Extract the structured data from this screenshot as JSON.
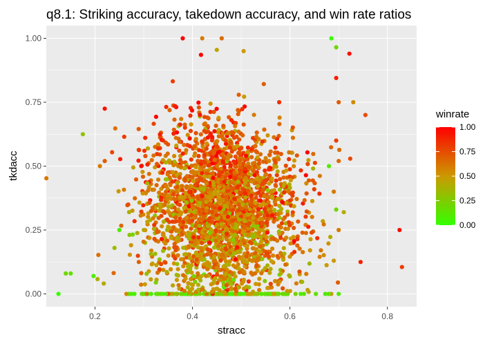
{
  "chart_data": {
    "type": "scatter",
    "title": "q8.1: Striking accuracy, takedown accuracy, and win rate ratios",
    "xlabel": "stracc",
    "ylabel": "tkdacc",
    "xlim": [
      0.1,
      0.86
    ],
    "ylim": [
      -0.05,
      1.05
    ],
    "x_ticks": [
      0.2,
      0.4,
      0.6,
      0.8
    ],
    "x_tick_labels": [
      "0.2",
      "0.4",
      "0.6",
      "0.8"
    ],
    "y_ticks": [
      0,
      0.25,
      0.5,
      0.75,
      1
    ],
    "y_tick_labels": [
      "0.00",
      "0.25",
      "0.50",
      "0.75",
      "1.00"
    ],
    "grid": true,
    "legend": {
      "title": "winrate",
      "placement": "right",
      "type": "colorbar",
      "range": [
        0,
        1
      ],
      "ticks": [
        0,
        0.25,
        0.5,
        0.75,
        1
      ],
      "tick_labels": [
        "0.00",
        "0.25",
        "0.50",
        "0.75",
        "1.00"
      ],
      "low_color": "#33ff00",
      "mid_color": "#cc9900",
      "high_color": "#ff0000"
    },
    "colors": {
      "panel_background": "#ebebeb",
      "gridline": "#ffffff"
    },
    "points_outliers": [
      {
        "x": 0.125,
        "y": 0.0,
        "winrate": 0.0
      },
      {
        "x": 0.14,
        "y": 0.08,
        "winrate": 0.2
      },
      {
        "x": 0.15,
        "y": 0.08,
        "winrate": 0.15
      },
      {
        "x": 0.175,
        "y": 0.625,
        "winrate": 0.3
      },
      {
        "x": 0.197,
        "y": 0.07,
        "winrate": 0.1
      },
      {
        "x": 0.21,
        "y": 0.5,
        "winrate": 0.6
      },
      {
        "x": 0.22,
        "y": 0.52,
        "winrate": 0.7
      },
      {
        "x": 0.22,
        "y": 0.725,
        "winrate": 0.95
      },
      {
        "x": 0.26,
        "y": 0.615,
        "winrate": 0.8
      },
      {
        "x": 0.38,
        "y": 1.0,
        "winrate": 1.0
      },
      {
        "x": 0.42,
        "y": 1.0,
        "winrate": 0.6
      },
      {
        "x": 0.46,
        "y": 1.0,
        "winrate": 0.65
      },
      {
        "x": 0.45,
        "y": 0.955,
        "winrate": 0.45
      },
      {
        "x": 0.505,
        "y": 0.95,
        "winrate": 0.5
      },
      {
        "x": 0.685,
        "y": 1.0,
        "winrate": 0.0
      },
      {
        "x": 0.695,
        "y": 0.965,
        "winrate": 0.2
      },
      {
        "x": 0.722,
        "y": 0.94,
        "winrate": 0.95
      },
      {
        "x": 0.695,
        "y": 0.845,
        "winrate": 0.9
      },
      {
        "x": 0.73,
        "y": 0.75,
        "winrate": 0.55
      },
      {
        "x": 0.755,
        "y": 0.7,
        "winrate": 0.75
      },
      {
        "x": 0.7,
        "y": 0.75,
        "winrate": 0.7
      },
      {
        "x": 0.695,
        "y": 0.6,
        "winrate": 0.8
      },
      {
        "x": 0.7,
        "y": 0.52,
        "winrate": 0.65
      },
      {
        "x": 0.68,
        "y": 0.5,
        "winrate": 0.1
      },
      {
        "x": 0.69,
        "y": 0.4,
        "winrate": 0.6
      },
      {
        "x": 0.695,
        "y": 0.33,
        "winrate": 0.2
      },
      {
        "x": 0.7,
        "y": 0.25,
        "winrate": 0.6
      },
      {
        "x": 0.69,
        "y": 0.13,
        "winrate": 0.5
      },
      {
        "x": 0.7,
        "y": 0.0,
        "winrate": 0.1
      },
      {
        "x": 0.745,
        "y": 0.125,
        "winrate": 0.9
      },
      {
        "x": 0.825,
        "y": 0.25,
        "winrate": 0.95
      },
      {
        "x": 0.83,
        "y": 0.105,
        "winrate": 0.8
      },
      {
        "x": 0.295,
        "y": 0.5,
        "winrate": 0.95
      },
      {
        "x": 0.25,
        "y": 0.25,
        "winrate": 0.1
      },
      {
        "x": 0.27,
        "y": 0.32,
        "winrate": 0.4
      },
      {
        "x": 0.24,
        "y": 0.18,
        "winrate": 0.35
      }
    ],
    "cluster_summary": {
      "x_center": 0.46,
      "x_spread": 0.075,
      "y_center": 0.33,
      "y_spread": 0.16,
      "approx_points": 2600,
      "zero_tkdacc_row": {
        "x_range": [
          0.13,
          0.69
        ],
        "dominant_winrate": 0.05
      }
    }
  }
}
